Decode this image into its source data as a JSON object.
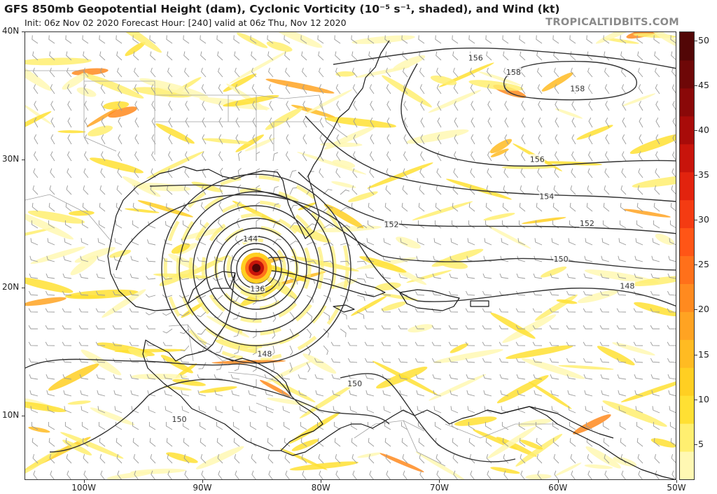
{
  "header": {
    "title": "GFS 850mb Geopotential Height (dam), Cyclonic Vorticity (10⁻⁵ s⁻¹, shaded), and Wind (kt)",
    "subtitle": "Init: 06z Nov 02 2020   Forecast Hour: [240]   valid at 06z Thu, Nov 12 2020",
    "site": "TROPICALTIDBITS.COM"
  },
  "map": {
    "lat_labels": [
      {
        "label": "40N",
        "lat": 40
      },
      {
        "label": "30N",
        "lat": 30
      },
      {
        "label": "20N",
        "lat": 20
      },
      {
        "label": "10N",
        "lat": 10
      }
    ],
    "lon_labels": [
      {
        "label": "100W",
        "lon": -100
      },
      {
        "label": "90W",
        "lon": -90
      },
      {
        "label": "80W",
        "lon": -80
      },
      {
        "label": "70W",
        "lon": -70
      },
      {
        "label": "60W",
        "lon": -60
      },
      {
        "label": "50W",
        "lon": -50
      }
    ],
    "contour_labels": [
      {
        "text": "156",
        "lon": -67.0,
        "lat": 38.0
      },
      {
        "text": "158",
        "lon": -63.8,
        "lat": 36.9
      },
      {
        "text": "158",
        "lon": -58.4,
        "lat": 35.6
      },
      {
        "text": "156",
        "lon": -61.8,
        "lat": 30.1
      },
      {
        "text": "154",
        "lon": -61.0,
        "lat": 27.2
      },
      {
        "text": "152",
        "lon": -74.1,
        "lat": 25.0
      },
      {
        "text": "152",
        "lon": -57.6,
        "lat": 25.1
      },
      {
        "text": "150",
        "lon": -59.8,
        "lat": 22.3
      },
      {
        "text": "148",
        "lon": -54.2,
        "lat": 20.2
      },
      {
        "text": "144",
        "lon": -86.0,
        "lat": 23.9
      },
      {
        "text": "136",
        "lon": -85.4,
        "lat": 20.0
      },
      {
        "text": "148",
        "lon": -84.8,
        "lat": 14.9
      },
      {
        "text": "150",
        "lon": -77.2,
        "lat": 12.6
      },
      {
        "text": "150",
        "lon": -92.0,
        "lat": 9.8
      }
    ],
    "cyclone_center": {
      "lon": -85.5,
      "lat": 21.6
    },
    "colors": {
      "contour": "#333333",
      "coast": "#1a1a1a",
      "border": "#9a9a9a",
      "barb": "#9a9a9a"
    }
  },
  "colorbar": {
    "labels": [
      "50",
      "45",
      "40",
      "35",
      "30",
      "25",
      "20",
      "15",
      "10",
      "5"
    ],
    "min": 1,
    "max": 51,
    "colors": [
      "#fff8b3",
      "#ffef70",
      "#ffe033",
      "#ffcf22",
      "#ffbb22",
      "#ffa322",
      "#ff8a1f",
      "#ff701a",
      "#ff5516",
      "#f43b12",
      "#e2230e",
      "#c8140b",
      "#a80b09",
      "#8a0808",
      "#6e0707",
      "#520606"
    ]
  }
}
